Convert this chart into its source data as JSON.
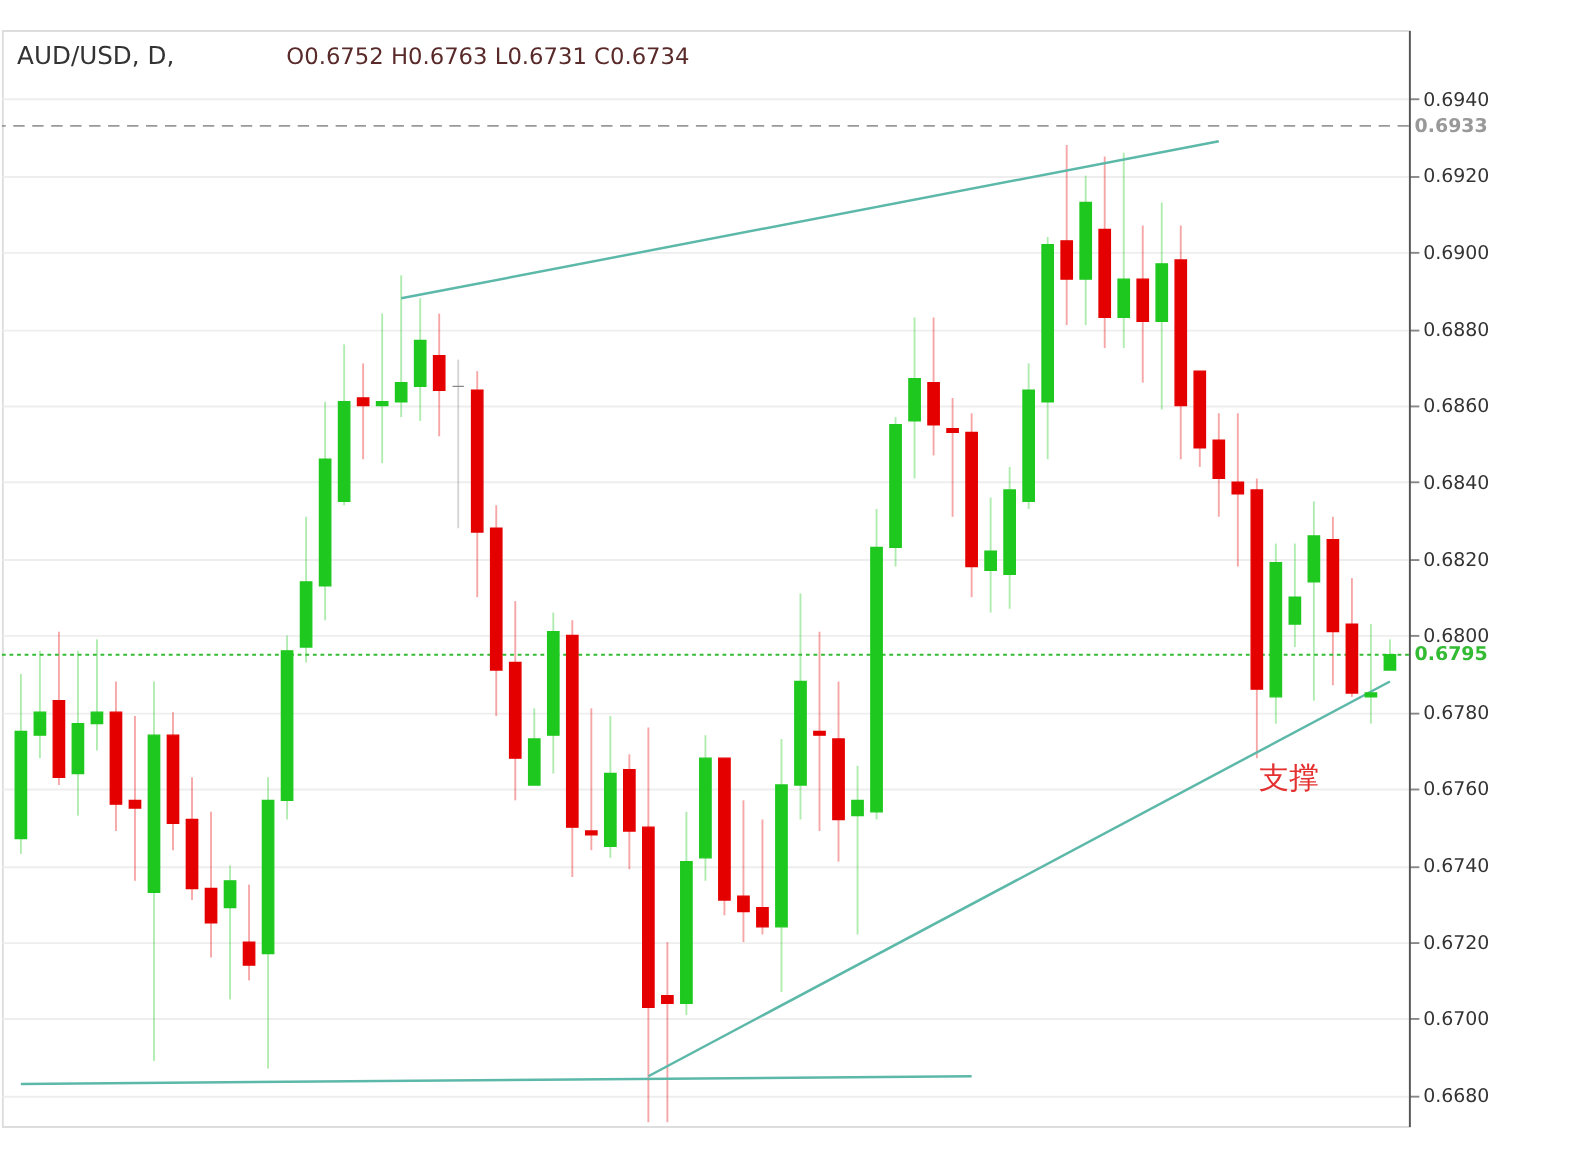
{
  "chart_data": {
    "type": "candlestick",
    "title": "AUD/USD, D,",
    "annotations": [
      "O0.6752 H0.6763 L0.6731 C0.6734",
      "支撑"
    ],
    "categories": [
      null,
      null,
      null,
      null,
      null,
      null,
      null,
      null,
      null,
      null,
      null,
      null,
      null,
      null,
      null,
      null,
      null,
      null,
      null,
      null,
      null,
      null,
      null,
      null,
      null,
      null,
      null,
      null,
      null,
      null,
      null,
      null,
      null,
      null,
      null,
      null,
      null,
      null,
      null,
      null,
      null,
      null,
      null,
      null,
      null,
      null,
      null,
      null,
      null,
      null,
      null,
      null,
      null,
      null,
      null,
      null,
      null,
      null,
      null,
      null,
      null,
      null,
      null,
      null,
      null,
      null,
      null,
      null,
      null,
      null,
      null,
      null,
      null
    ],
    "ohlc": [
      [
        0.6747,
        0.679,
        0.6743,
        0.6775
      ],
      [
        0.6774,
        0.6796,
        0.6768,
        0.678
      ],
      [
        0.6783,
        0.6801,
        0.6761,
        0.6763
      ],
      [
        0.6764,
        0.6796,
        0.6753,
        0.6777
      ],
      [
        0.6777,
        0.6799,
        0.677,
        0.678
      ],
      [
        0.678,
        0.6788,
        0.6749,
        0.6756
      ],
      [
        0.6757,
        0.6779,
        0.6736,
        0.6755
      ],
      [
        0.6733,
        0.6788,
        0.6689,
        0.6774
      ],
      [
        0.6774,
        0.678,
        0.6744,
        0.6751
      ],
      [
        0.6752,
        0.6763,
        0.6731,
        0.6734
      ],
      [
        0.6734,
        0.6754,
        0.6716,
        0.6725
      ],
      [
        0.6729,
        0.674,
        0.6705,
        0.6736
      ],
      [
        0.672,
        0.6735,
        0.671,
        0.6714
      ],
      [
        0.6717,
        0.6763,
        0.6687,
        0.6757
      ],
      [
        0.6757,
        0.68,
        0.6752,
        0.6796
      ],
      [
        0.6797,
        0.6831,
        0.6793,
        0.6814
      ],
      [
        0.6813,
        0.6861,
        0.6804,
        0.6846
      ],
      [
        0.6835,
        0.6876,
        0.6834,
        0.6861
      ],
      [
        0.6862,
        0.6871,
        0.6846,
        0.686
      ],
      [
        0.686,
        0.6884,
        0.6845,
        0.6861
      ],
      [
        0.6861,
        0.6894,
        0.6857,
        0.6866
      ],
      [
        0.6865,
        0.6888,
        0.6856,
        0.6877
      ],
      [
        0.6873,
        0.6884,
        0.6852,
        0.6864
      ],
      [
        0.6865,
        0.6872,
        0.6828,
        0.6865
      ],
      [
        0.6864,
        0.6869,
        0.681,
        0.6827
      ],
      [
        0.6828,
        0.6834,
        0.6779,
        0.6791
      ],
      [
        0.6793,
        0.6809,
        0.6757,
        0.6768
      ],
      [
        0.6761,
        0.6781,
        0.6761,
        0.6773
      ],
      [
        0.6774,
        0.6806,
        0.6764,
        0.6801
      ],
      [
        0.68,
        0.6804,
        0.6737,
        0.675
      ],
      [
        0.6749,
        0.6781,
        0.6744,
        0.6748
      ],
      [
        0.6745,
        0.6779,
        0.6742,
        0.6764
      ],
      [
        0.6765,
        0.6769,
        0.6739,
        0.6749
      ],
      [
        0.675,
        0.6776,
        0.6673,
        0.6703
      ],
      [
        0.6706,
        0.672,
        0.6673,
        0.6704
      ],
      [
        0.6704,
        0.6754,
        0.6701,
        0.6741
      ],
      [
        0.6742,
        0.6774,
        0.6736,
        0.6768
      ],
      [
        0.6768,
        0.6768,
        0.6727,
        0.6731
      ],
      [
        0.6732,
        0.6757,
        0.672,
        0.6728
      ],
      [
        0.6729,
        0.6752,
        0.6722,
        0.6724
      ],
      [
        0.6724,
        0.6773,
        0.6707,
        0.6761
      ],
      [
        0.6761,
        0.6811,
        0.6752,
        0.6788
      ],
      [
        0.6775,
        0.6801,
        0.6749,
        0.6774
      ],
      [
        0.6773,
        0.6788,
        0.6741,
        0.6752
      ],
      [
        0.6753,
        0.6766,
        0.6722,
        0.6757
      ],
      [
        0.6754,
        0.6833,
        0.6752,
        0.6823
      ],
      [
        0.6823,
        0.6857,
        0.6818,
        0.6855
      ],
      [
        0.6856,
        0.6883,
        0.6841,
        0.6867
      ],
      [
        0.6866,
        0.6883,
        0.6847,
        0.6855
      ],
      [
        0.6854,
        0.6862,
        0.6831,
        0.6853
      ],
      [
        0.6853,
        0.6858,
        0.681,
        0.6818
      ],
      [
        0.6817,
        0.6836,
        0.6806,
        0.6822
      ],
      [
        0.6816,
        0.6844,
        0.6807,
        0.6838
      ],
      [
        0.6835,
        0.6871,
        0.6833,
        0.6864
      ],
      [
        0.6861,
        0.6904,
        0.6846,
        0.6902
      ],
      [
        0.6903,
        0.6928,
        0.6881,
        0.6893
      ],
      [
        0.6893,
        0.692,
        0.6881,
        0.6913
      ],
      [
        0.6906,
        0.6925,
        0.6875,
        0.6883
      ],
      [
        0.6883,
        0.6926,
        0.6875,
        0.6893
      ],
      [
        0.6893,
        0.6907,
        0.6866,
        0.6882
      ],
      [
        0.6882,
        0.6913,
        0.6859,
        0.6897
      ],
      [
        0.6898,
        0.6907,
        0.6846,
        0.686
      ],
      [
        0.6869,
        0.6869,
        0.6844,
        0.6849
      ],
      [
        0.6851,
        0.6858,
        0.6831,
        0.6841
      ],
      [
        0.684,
        0.6858,
        0.6818,
        0.6837
      ],
      [
        0.6838,
        0.6841,
        0.6768,
        0.6786
      ],
      [
        0.6784,
        0.6824,
        0.6777,
        0.6819
      ],
      [
        0.6803,
        0.6824,
        0.6797,
        0.681
      ],
      [
        0.6814,
        0.6835,
        0.6783,
        0.6826
      ],
      [
        0.6825,
        0.6831,
        0.6787,
        0.6801
      ],
      [
        0.6803,
        0.6815,
        0.6784,
        0.6785
      ],
      [
        0.6784,
        0.6803,
        0.6777,
        0.6785
      ],
      [
        0.6791,
        0.6799,
        0.6791,
        0.6795
      ]
    ],
    "colors": [
      "#1ec81e",
      "#1ec81e",
      "#e50000",
      "#1ec81e",
      "#1ec81e",
      "#e50000",
      "#e50000",
      "#1ec81e",
      "#e50000",
      "#e50000",
      "#e50000",
      "#1ec81e",
      "#e50000",
      "#1ec81e",
      "#1ec81e",
      "#1ec81e",
      "#1ec81e",
      "#1ec81e",
      "#e50000",
      "#1ec81e",
      "#1ec81e",
      "#1ec81e",
      "#e50000",
      "#888888",
      "#e50000",
      "#e50000",
      "#e50000",
      "#1ec81e",
      "#1ec81e",
      "#e50000",
      "#e50000",
      "#1ec81e",
      "#e50000",
      "#e50000",
      "#e50000",
      "#1ec81e",
      "#1ec81e",
      "#e50000",
      "#e50000",
      "#e50000",
      "#1ec81e",
      "#1ec81e",
      "#e50000",
      "#e50000",
      "#1ec81e",
      "#1ec81e",
      "#1ec81e",
      "#1ec81e",
      "#e50000",
      "#e50000",
      "#e50000",
      "#1ec81e",
      "#1ec81e",
      "#1ec81e",
      "#1ec81e",
      "#e50000",
      "#1ec81e",
      "#e50000",
      "#1ec81e",
      "#e50000",
      "#1ec81e",
      "#e50000",
      "#e50000",
      "#e50000",
      "#e50000",
      "#e50000",
      "#1ec81e",
      "#1ec81e",
      "#1ec81e",
      "#e50000",
      "#e50000",
      "#1ec81e",
      "#1ec81e"
    ],
    "series": [
      {
        "type": "line",
        "color": "#5cb8a8",
        "values": [
          null,
          null,
          null,
          null,
          null,
          null,
          null,
          null,
          null,
          null,
          null,
          null,
          null,
          null,
          null,
          null,
          null,
          null,
          null,
          null,
          0.6888,
          null,
          null,
          null,
          null,
          null,
          null,
          null,
          null,
          null,
          null,
          null,
          null,
          null,
          null,
          null,
          null,
          null,
          null,
          null,
          null,
          null,
          null,
          null,
          null,
          null,
          null,
          null,
          null,
          null,
          null,
          null,
          null,
          null,
          null,
          null,
          null,
          null,
          null,
          null,
          null,
          null,
          null,
          0.6929,
          null,
          null,
          null,
          null,
          null,
          null,
          null,
          null,
          null
        ]
      },
      {
        "type": "line",
        "color": "#5cb8a8",
        "values": [
          null,
          null,
          null,
          null,
          null,
          null,
          null,
          null,
          null,
          null,
          null,
          null,
          null,
          null,
          null,
          null,
          null,
          null,
          null,
          null,
          null,
          null,
          null,
          null,
          null,
          null,
          null,
          null,
          null,
          null,
          null,
          null,
          null,
          0.6685,
          null,
          null,
          null,
          null,
          null,
          null,
          null,
          null,
          null,
          null,
          null,
          null,
          null,
          null,
          null,
          null,
          null,
          null,
          null,
          null,
          null,
          null,
          null,
          null,
          null,
          null,
          null,
          null,
          null,
          null,
          null,
          null,
          null,
          null,
          null,
          null,
          null,
          null,
          0.6788
        ]
      },
      {
        "type": "line",
        "color": "#5cb8a8",
        "values": [
          0.6683,
          null,
          null,
          null,
          null,
          null,
          null,
          null,
          null,
          null,
          null,
          null,
          null,
          null,
          null,
          null,
          null,
          null,
          null,
          null,
          null,
          null,
          null,
          null,
          null,
          null,
          null,
          null,
          null,
          null,
          null,
          null,
          null,
          null,
          null,
          null,
          null,
          null,
          null,
          null,
          null,
          null,
          null,
          null,
          null,
          null,
          null,
          null,
          null,
          null,
          0.6685,
          null,
          null,
          null,
          null,
          null,
          null,
          null,
          null,
          null,
          null,
          null,
          null,
          null,
          null,
          null,
          null,
          null,
          null,
          null,
          null,
          null,
          null
        ]
      }
    ],
    "ref_lines": [
      {
        "axis": "y",
        "value": 0.6933,
        "label": "0.6933",
        "color": "#999999",
        "line_style": "dashed"
      },
      {
        "axis": "y",
        "value": 0.6795,
        "label": "0.6795",
        "color": "#33bb33",
        "line_style": "dotted"
      }
    ],
    "ylim": [
      0.6672,
      0.6958
    ],
    "yticks": [
      {
        "value": 0.668,
        "label": "0.6680"
      },
      {
        "value": 0.67,
        "label": "0.6700"
      },
      {
        "value": 0.672,
        "label": "0.6720"
      },
      {
        "value": 0.674,
        "label": "0.6740"
      },
      {
        "value": 0.676,
        "label": "0.6760"
      },
      {
        "value": 0.678,
        "label": "0.6780"
      },
      {
        "value": 0.68,
        "label": "0.6800"
      },
      {
        "value": 0.682,
        "label": "0.6820"
      },
      {
        "value": 0.684,
        "label": "0.6840"
      },
      {
        "value": 0.686,
        "label": "0.6860"
      },
      {
        "value": 0.688,
        "label": "0.6880"
      },
      {
        "value": 0.69,
        "label": "0.6900"
      },
      {
        "value": 0.692,
        "label": "0.6920"
      },
      {
        "value": 0.694,
        "label": "0.6940"
      }
    ],
    "tick_labels": "y",
    "grid": "y"
  }
}
